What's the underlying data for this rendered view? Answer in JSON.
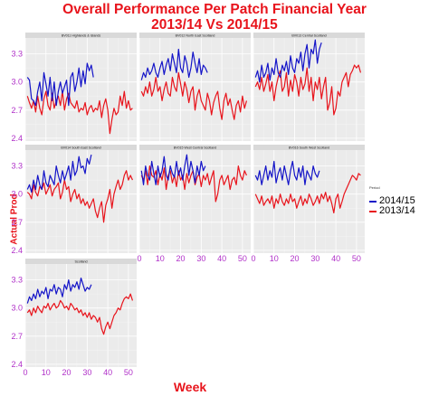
{
  "title_line1": "Overall Performance Per Patch Financial Year",
  "title_line2": "2013/14 Vs 2014/15",
  "chart_data": {
    "type": "line",
    "xlabel": "Week",
    "ylabel": "Actual Prod",
    "xlim": [
      0,
      54
    ],
    "ylim": [
      2.37,
      3.47
    ],
    "x_ticks": [
      "0",
      "10",
      "20",
      "30",
      "40",
      "50"
    ],
    "y_ticks": [
      "2.4",
      "2.7",
      "3.0",
      "3.3"
    ],
    "grid": true,
    "legend": {
      "title": "Period",
      "placement": "right",
      "entries": [
        {
          "name": "2014/15",
          "color": "#1414c8"
        },
        {
          "name": "2013/14",
          "color": "#e8141c"
        }
      ]
    },
    "panels": [
      {
        "title": "BV011 Highlands & Islands",
        "series": [
          {
            "name": "2014/15",
            "color": "#1414c8",
            "values": [
              3.05,
              3.02,
              2.82,
              2.8,
              2.75,
              2.9,
              3.0,
              2.8,
              3.1,
              2.98,
              2.85,
              3.05,
              2.8,
              3.0,
              2.75,
              2.9,
              3.0,
              2.88,
              2.95,
              3.02,
              2.75,
              3.05,
              3.1,
              2.9,
              3.0,
              3.15,
              2.95,
              3.12,
              2.98,
              3.2,
              3.12,
              3.18,
              3.05
            ]
          },
          {
            "name": "2013/14",
            "color": "#e8141c",
            "values": [
              2.85,
              2.78,
              2.72,
              2.8,
              2.68,
              2.85,
              2.72,
              2.65,
              2.82,
              2.9,
              2.75,
              2.7,
              2.88,
              2.72,
              2.8,
              2.85,
              2.75,
              2.9,
              2.7,
              2.82,
              2.88,
              2.78,
              2.75,
              2.72,
              2.8,
              2.68,
              2.72,
              2.7,
              2.78,
              2.65,
              2.72,
              2.75,
              2.68,
              2.72,
              2.7,
              2.8,
              2.62,
              2.75,
              2.82,
              2.7,
              2.45,
              2.6,
              2.72,
              2.65,
              2.68,
              2.85,
              2.75,
              2.9,
              2.72,
              2.8,
              2.7,
              2.72
            ]
          }
        ]
      },
      {
        "title": "BV012 North East Scotland",
        "series": [
          {
            "name": "2014/15",
            "color": "#1414c8",
            "values": [
              3.02,
              3.1,
              3.05,
              3.15,
              3.08,
              3.12,
              3.2,
              3.1,
              3.05,
              3.15,
              3.22,
              3.08,
              3.18,
              3.25,
              3.12,
              3.3,
              3.2,
              3.1,
              3.35,
              3.15,
              3.1,
              3.28,
              3.2,
              3.05,
              3.15,
              3.32,
              3.2,
              3.1,
              3.25,
              3.08,
              3.18,
              3.15,
              3.1
            ]
          },
          {
            "name": "2013/14",
            "color": "#e8141c",
            "values": [
              2.9,
              2.85,
              2.95,
              2.88,
              3.0,
              2.85,
              2.92,
              3.05,
              2.9,
              2.95,
              2.8,
              2.92,
              3.0,
              2.88,
              2.85,
              3.05,
              2.95,
              2.9,
              3.1,
              2.98,
              2.85,
              3.0,
              2.92,
              2.78,
              2.9,
              2.95,
              2.7,
              2.85,
              2.92,
              2.8,
              2.75,
              2.7,
              2.88,
              2.8,
              2.65,
              2.78,
              2.85,
              2.9,
              2.72,
              2.6,
              2.8,
              2.88,
              2.75,
              2.82,
              2.7,
              2.6,
              2.75,
              2.8,
              2.68,
              2.85,
              2.72,
              2.8
            ]
          }
        ]
      },
      {
        "title": "BV013 Central Scotland",
        "series": [
          {
            "name": "2014/15",
            "color": "#1414c8",
            "values": [
              3.05,
              3.12,
              3.0,
              3.18,
              3.05,
              3.1,
              3.2,
              3.02,
              3.15,
              3.08,
              3.25,
              3.1,
              3.05,
              3.18,
              3.12,
              3.22,
              3.08,
              3.28,
              3.15,
              3.1,
              3.25,
              3.2,
              3.32,
              3.12,
              3.3,
              3.4,
              3.15,
              3.35,
              3.3,
              3.45,
              3.2,
              3.35,
              3.42
            ]
          },
          {
            "name": "2013/14",
            "color": "#e8141c",
            "values": [
              2.95,
              3.0,
              2.92,
              3.05,
              2.9,
              2.98,
              3.08,
              2.9,
              3.0,
              2.8,
              2.95,
              3.05,
              3.12,
              2.9,
              2.95,
              3.1,
              2.85,
              3.02,
              2.9,
              3.08,
              3.0,
              2.85,
              3.05,
              2.92,
              2.98,
              3.15,
              2.9,
              3.05,
              2.8,
              3.0,
              2.92,
              3.05,
              2.82,
              2.95,
              3.05,
              2.7,
              2.78,
              2.95,
              2.65,
              2.72,
              2.9,
              2.85,
              3.0,
              3.05,
              3.1,
              2.95,
              3.08,
              3.12,
              3.18,
              3.15,
              3.18,
              3.1
            ]
          }
        ]
      },
      {
        "title": "BV014 South East Scotland",
        "series": [
          {
            "name": "2014/15",
            "color": "#1414c8",
            "values": [
              3.05,
              3.1,
              3.02,
              3.15,
              3.05,
              3.2,
              3.1,
              3.05,
              3.25,
              3.12,
              3.08,
              3.2,
              3.15,
              3.1,
              3.3,
              3.2,
              3.12,
              3.25,
              3.15,
              3.22,
              3.3,
              3.15,
              3.35,
              3.2,
              3.25,
              3.4,
              3.28,
              3.3,
              3.22,
              3.38,
              3.32,
              3.42
            ]
          },
          {
            "name": "2013/14",
            "color": "#e8141c",
            "values": [
              3.02,
              3.0,
              2.95,
              3.1,
              3.02,
              2.98,
              3.08,
              3.05,
              3.12,
              3.0,
              3.05,
              3.1,
              2.98,
              3.05,
              3.08,
              3.12,
              2.95,
              3.02,
              3.15,
              3.05,
              3.08,
              2.92,
              3.0,
              3.05,
              2.95,
              3.0,
              2.9,
              2.95,
              2.88,
              2.92,
              2.85,
              2.9,
              2.95,
              2.82,
              2.75,
              2.85,
              2.92,
              2.7,
              2.88,
              2.95,
              3.05,
              2.85,
              3.0,
              3.08,
              3.15,
              3.05,
              3.1,
              3.2,
              3.25,
              3.15,
              3.2,
              3.15
            ]
          }
        ]
      },
      {
        "title": "BV015 West Central Scotland",
        "series": [
          {
            "name": "2014/15",
            "color": "#1414c8",
            "values": [
              3.25,
              3.1,
              3.3,
              3.2,
              3.15,
              3.35,
              3.22,
              3.1,
              3.3,
              3.18,
              3.25,
              3.4,
              3.2,
              3.15,
              3.3,
              3.22,
              3.18,
              3.35,
              3.2,
              3.28,
              3.15,
              3.3,
              3.42,
              3.2,
              3.35,
              3.25,
              3.12,
              3.3,
              3.2,
              3.35,
              3.25,
              3.3
            ]
          },
          {
            "name": "2013/14",
            "color": "#e8141c",
            "values": [
              3.2,
              3.15,
              3.25,
              3.1,
              3.3,
              3.2,
              3.18,
              3.25,
              3.1,
              3.22,
              3.15,
              3.28,
              3.05,
              3.2,
              3.25,
              3.12,
              3.2,
              3.08,
              3.25,
              3.15,
              3.2,
              3.05,
              3.22,
              3.12,
              3.2,
              3.25,
              3.1,
              3.18,
              3.22,
              3.08,
              3.2,
              3.15,
              3.22,
              3.1,
              3.18,
              3.25,
              2.92,
              3.0,
              3.15,
              3.2,
              3.1,
              3.15,
              3.2,
              3.05,
              3.15,
              3.18,
              3.1,
              3.3,
              3.2,
              3.15,
              3.25,
              3.2
            ]
          }
        ]
      },
      {
        "title": "BV016 South West Scotland",
        "series": [
          {
            "name": "2014/15",
            "color": "#1414c8",
            "values": [
              3.2,
              3.15,
              3.25,
              3.1,
              3.2,
              3.3,
              3.15,
              3.25,
              3.18,
              3.35,
              3.12,
              3.22,
              3.28,
              3.15,
              3.3,
              3.2,
              3.1,
              3.25,
              3.35,
              3.2,
              3.15,
              3.28,
              3.18,
              3.3,
              3.1,
              3.25,
              3.2,
              3.15,
              3.3,
              3.22,
              3.18,
              3.25
            ]
          },
          {
            "name": "2013/14",
            "color": "#e8141c",
            "values": [
              3.0,
              2.95,
              2.9,
              2.98,
              2.88,
              2.92,
              2.95,
              2.9,
              2.98,
              2.85,
              2.95,
              2.9,
              3.0,
              2.92,
              2.88,
              2.95,
              2.9,
              3.0,
              2.92,
              2.95,
              2.85,
              2.92,
              2.98,
              2.88,
              2.95,
              2.9,
              3.0,
              2.95,
              2.88,
              2.92,
              2.98,
              2.9,
              3.0,
              2.95,
              3.02,
              2.92,
              2.98,
              2.9,
              2.8,
              2.95,
              3.0,
              2.85,
              2.92,
              3.0,
              3.05,
              3.1,
              3.15,
              3.2,
              3.18,
              3.15,
              3.22,
              3.2
            ]
          }
        ]
      },
      {
        "title": "Scotland",
        "series": [
          {
            "name": "2014/15",
            "color": "#1414c8",
            "values": [
              3.05,
              3.12,
              3.08,
              3.15,
              3.1,
              3.2,
              3.12,
              3.18,
              3.15,
              3.22,
              3.1,
              3.2,
              3.18,
              3.25,
              3.15,
              3.22,
              3.2,
              3.12,
              3.25,
              3.2,
              3.3,
              3.18,
              3.25,
              3.22,
              3.28,
              3.2,
              3.32,
              3.25,
              3.18,
              3.22,
              3.2,
              3.25
            ]
          },
          {
            "name": "2013/14",
            "color": "#e8141c",
            "values": [
              2.95,
              2.98,
              2.92,
              3.0,
              2.95,
              3.02,
              2.98,
              2.95,
              3.02,
              3.0,
              3.05,
              2.98,
              3.02,
              3.05,
              3.0,
              3.02,
              3.08,
              3.05,
              3.0,
              3.02,
              2.98,
              3.05,
              3.02,
              2.98,
              3.0,
              2.95,
              2.98,
              2.92,
              2.95,
              2.9,
              2.95,
              2.88,
              2.92,
              2.9,
              2.85,
              2.9,
              2.78,
              2.72,
              2.8,
              2.85,
              2.78,
              2.85,
              2.92,
              2.95,
              3.0,
              2.98,
              3.05,
              3.1,
              3.12,
              3.1,
              3.15,
              3.08
            ]
          }
        ]
      }
    ]
  }
}
